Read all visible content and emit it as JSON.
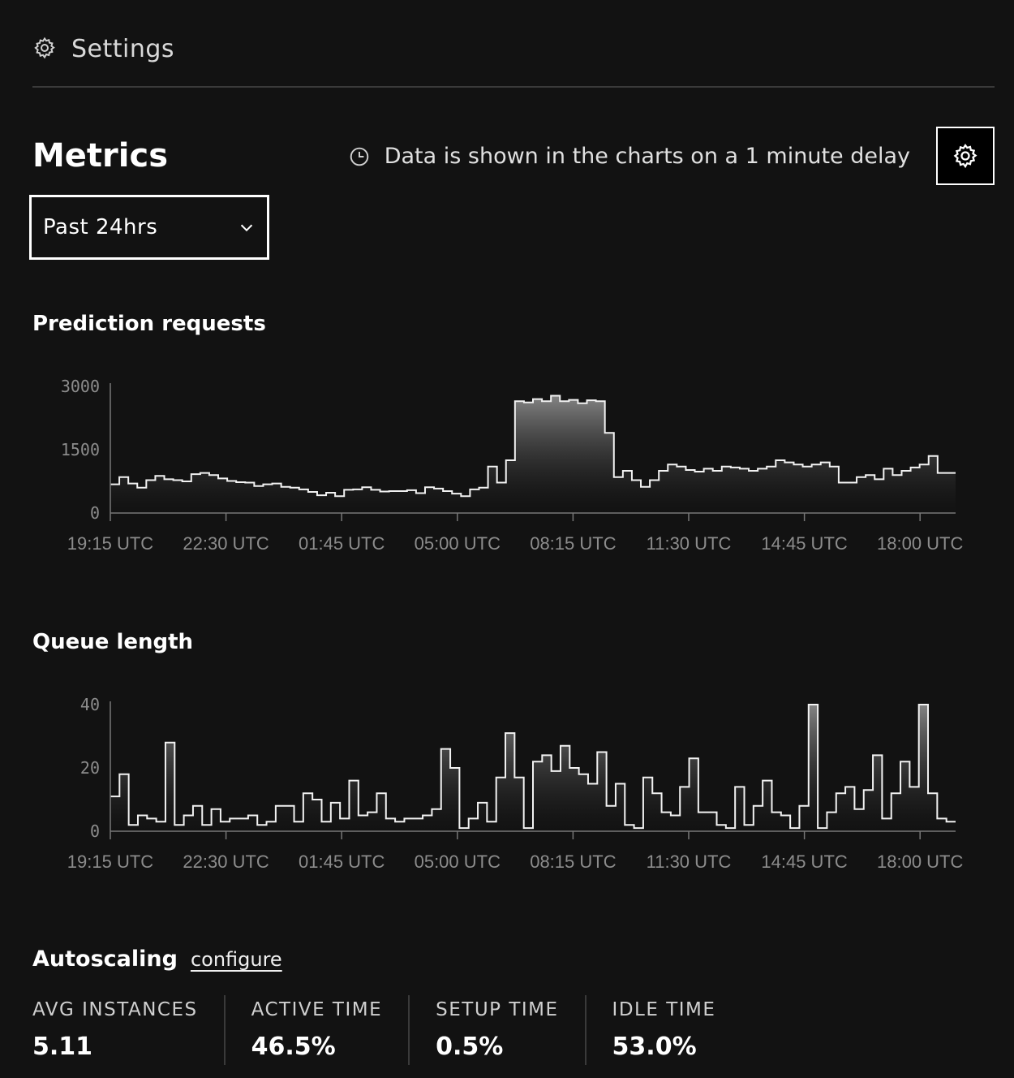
{
  "header": {
    "title": "Settings",
    "icon": "gear-icon"
  },
  "metrics": {
    "title": "Metrics",
    "delay_note": "Data is shown in the charts on a 1 minute delay",
    "clock_icon": "clock-icon",
    "settings_icon": "gear-icon"
  },
  "range_select": {
    "value": "Past 24hrs",
    "icon": "chevron-down-icon"
  },
  "sections": {
    "prediction_requests": "Prediction requests",
    "queue_length": "Queue length"
  },
  "chart_data": [
    {
      "type": "area",
      "title": "Prediction requests",
      "x_tick_labels": [
        "19:15 UTC",
        "22:30 UTC",
        "01:45 UTC",
        "05:00 UTC",
        "08:15 UTC",
        "11:30 UTC",
        "14:45 UTC",
        "18:00 UTC"
      ],
      "y_tick_labels": [
        "0",
        "1500",
        "3000"
      ],
      "ylim": [
        0,
        3000
      ],
      "series": [
        {
          "values": [
            680,
            850,
            700,
            600,
            780,
            880,
            800,
            780,
            750,
            920,
            950,
            900,
            820,
            760,
            730,
            720,
            640,
            680,
            700,
            620,
            600,
            560,
            500,
            420,
            480,
            400,
            550,
            560,
            610,
            550,
            510,
            520,
            520,
            540,
            470,
            610,
            580,
            520,
            460,
            400,
            560,
            600,
            1100,
            720,
            1250,
            2650,
            2620,
            2700,
            2650,
            2780,
            2650,
            2680,
            2600,
            2670,
            2650,
            1900,
            850,
            1000,
            780,
            620,
            780,
            1000,
            1150,
            1100,
            1020,
            980,
            1050,
            1000,
            1100,
            1080,
            1050,
            1000,
            1050,
            1100,
            1250,
            1200,
            1150,
            1100,
            1150,
            1200,
            1100,
            720,
            720,
            850,
            900,
            800,
            1050,
            900,
            1000,
            1080,
            1150,
            1350,
            950,
            950
          ]
        }
      ],
      "grid": false,
      "style": "step-area"
    },
    {
      "type": "area",
      "title": "Queue length",
      "x_tick_labels": [
        "19:15 UTC",
        "22:30 UTC",
        "01:45 UTC",
        "05:00 UTC",
        "08:15 UTC",
        "11:30 UTC",
        "14:45 UTC",
        "18:00 UTC"
      ],
      "y_tick_labels": [
        "0",
        "20",
        "40"
      ],
      "ylim": [
        0,
        40
      ],
      "series": [
        {
          "values": [
            11,
            18,
            2,
            5,
            4,
            3,
            28,
            2,
            5,
            8,
            2,
            7,
            3,
            4,
            4,
            5,
            2,
            3,
            8,
            8,
            3,
            12,
            10,
            3,
            9,
            4,
            16,
            5,
            6,
            12,
            4,
            3,
            4,
            4,
            5,
            7,
            26,
            20,
            1,
            4,
            9,
            3,
            17,
            31,
            17,
            1,
            22,
            24,
            19,
            27,
            20,
            18,
            15,
            25,
            8,
            15,
            2,
            1,
            17,
            12,
            6,
            5,
            14,
            23,
            6,
            6,
            2,
            1,
            14,
            2,
            8,
            16,
            6,
            5,
            1,
            8,
            40,
            1,
            6,
            12,
            14,
            7,
            13,
            24,
            4,
            12,
            22,
            14,
            40,
            12,
            4,
            3
          ]
        }
      ],
      "grid": false,
      "style": "step-area"
    }
  ],
  "autoscaling": {
    "title": "Autoscaling",
    "link": "configure",
    "stats": [
      {
        "label": "AVG INSTANCES",
        "value": "5.11"
      },
      {
        "label": "ACTIVE TIME",
        "value": "46.5%"
      },
      {
        "label": "SETUP TIME",
        "value": "0.5%"
      },
      {
        "label": "IDLE TIME",
        "value": "53.0%"
      }
    ]
  }
}
